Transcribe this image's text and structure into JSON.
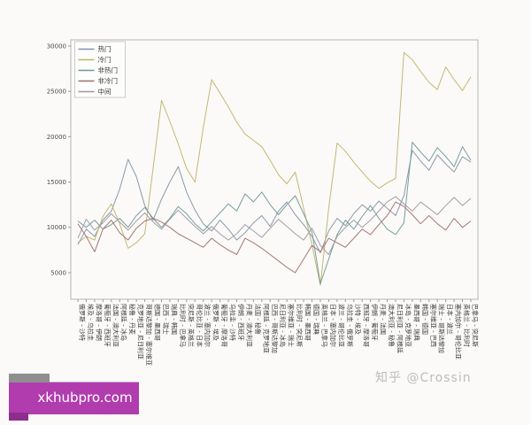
{
  "watermarks": {
    "zhihu": "知乎 @Crossin",
    "site": "xkhubpro.com"
  },
  "chart_data": {
    "type": "line",
    "title": "",
    "xlabel": "",
    "ylabel": "",
    "ylim": [
      2000,
      30700
    ],
    "yticks": [
      5000,
      10000,
      15000,
      20000,
      25000,
      30000
    ],
    "grid": false,
    "legend_position": "upper-left",
    "spine_color": "#b5b5b5",
    "tick_label_color": "#3c3c3c",
    "categories": [
      "俄罗斯 - 沙特",
      "埃及 - 乌拉圭",
      "摩洛哥 - 伊朗",
      "葡萄牙 - 西班牙",
      "法国 - 澳大利亚",
      "阿根廷 - 冰岛",
      "秘鲁 - 丹麦",
      "克罗地亚 - 尼日利亚",
      "哥斯达黎加 - 塞尔维亚",
      "德国 - 墨西哥",
      "巴西 - 瑞士",
      "瑞典 - 韩国",
      "比利时 - 巴拿马",
      "突尼斯 - 英格兰",
      "哥伦比亚 - 日本",
      "波兰 - 塞内加尔",
      "俄罗斯 - 埃及",
      "葡萄牙 - 摩洛哥",
      "乌拉圭 - 沙特",
      "伊朗 - 西班牙",
      "丹麦 - 澳大利亚",
      "法国 - 秘鲁",
      "阿根廷 - 克罗地亚",
      "巴西 - 哥斯达黎加",
      "尼日利亚 - 冰岛",
      "塞尔维亚 - 瑞士",
      "比利时 - 突尼斯",
      "韩国 - 墨西哥",
      "德国 - 瑞典",
      "英格兰 - 巴拿马",
      "日本 - 塞内加尔",
      "波兰 - 哥伦比亚",
      "乌拉圭 - 俄罗斯",
      "沙特 - 埃及",
      "西班牙 - 摩洛哥",
      "伊朗 - 葡萄牙",
      "丹麦 - 法国",
      "澳大利亚 - 秘鲁",
      "尼日利亚 - 阿根廷",
      "冰岛 - 克罗地亚",
      "墨西哥 - 瑞典",
      "韩国 - 德国",
      "塞尔维亚 - 巴西",
      "瑞士 - 哥斯达黎加",
      "日本 - 波兰",
      "塞内加尔 - 哥伦比亚",
      "英格兰 - 比利时",
      "巴拿马 - 突尼斯"
    ],
    "series": [
      {
        "name": "热门",
        "color": "#8494a8",
        "values": [
          8100,
          9800,
          9000,
          10800,
          11800,
          14200,
          17500,
          15600,
          12400,
          10800,
          13100,
          15000,
          16700,
          13900,
          11900,
          10400,
          9600,
          10800,
          9800,
          8600,
          9400,
          10500,
          11300,
          10100,
          11800,
          12800,
          11400,
          10300,
          9000,
          7200,
          9600,
          11000,
          10200,
          11500,
          12500,
          11800,
          12900,
          12100,
          11300,
          13500,
          18500,
          17300,
          16300,
          18000,
          17000,
          16100,
          17800,
          17200
        ]
      },
      {
        "name": "冷门",
        "color": "#c3b36b",
        "values": [
          8300,
          9000,
          8600,
          11200,
          12600,
          10400,
          7700,
          8300,
          9300,
          16500,
          24000,
          21700,
          19200,
          16500,
          15000,
          21000,
          26300,
          24800,
          23300,
          21600,
          20300,
          19600,
          18900,
          17400,
          15800,
          14800,
          16100,
          12100,
          8100,
          3600,
          12100,
          19300,
          18400,
          17200,
          16100,
          15100,
          14300,
          14900,
          15400,
          29300,
          28500,
          27200,
          26000,
          25200,
          27700,
          26300,
          25100,
          26600
        ]
      },
      {
        "name": "非热门",
        "color": "#6f9a98",
        "values": [
          10700,
          10000,
          10800,
          9800,
          10300,
          11000,
          10000,
          11300,
          12200,
          11000,
          10000,
          11000,
          12300,
          11500,
          10400,
          9600,
          10600,
          11600,
          12600,
          11800,
          13700,
          12800,
          13900,
          12500,
          11400,
          12500,
          13500,
          11500,
          9500,
          3800,
          6500,
          9200,
          10800,
          9800,
          11200,
          12400,
          11000,
          9800,
          9200,
          10500,
          19400,
          18300,
          17300,
          18800,
          17800,
          16700,
          18900,
          17400
        ]
      },
      {
        "name": "非冷门",
        "color": "#a06f6f",
        "values": [
          10400,
          9000,
          7300,
          9800,
          10800,
          9400,
          8600,
          9900,
          10700,
          11000,
          10600,
          10000,
          9300,
          8800,
          8300,
          7800,
          8800,
          8100,
          7500,
          7000,
          8800,
          8300,
          7700,
          7000,
          6300,
          5600,
          5000,
          6500,
          8000,
          7300,
          8800,
          8300,
          7800,
          8800,
          9800,
          9200,
          10300,
          11300,
          12800,
          12300,
          11400,
          10400,
          11300,
          10400,
          9700,
          11000,
          10000,
          10700
        ]
      },
      {
        "name": "中间",
        "color": "#9b99a0",
        "values": [
          8800,
          10900,
          9700,
          10500,
          11500,
          10600,
          9700,
          10700,
          11600,
          10600,
          9800,
          10900,
          11900,
          11000,
          10100,
          9300,
          10100,
          9300,
          8600,
          9300,
          10300,
          9600,
          8900,
          9900,
          10900,
          10100,
          9300,
          8600,
          9900,
          8000,
          7000,
          9000,
          10000,
          10800,
          10000,
          10800,
          11800,
          12800,
          13400,
          12600,
          11800,
          12800,
          12100,
          11400,
          12400,
          13300,
          12400,
          13200
        ]
      }
    ]
  }
}
